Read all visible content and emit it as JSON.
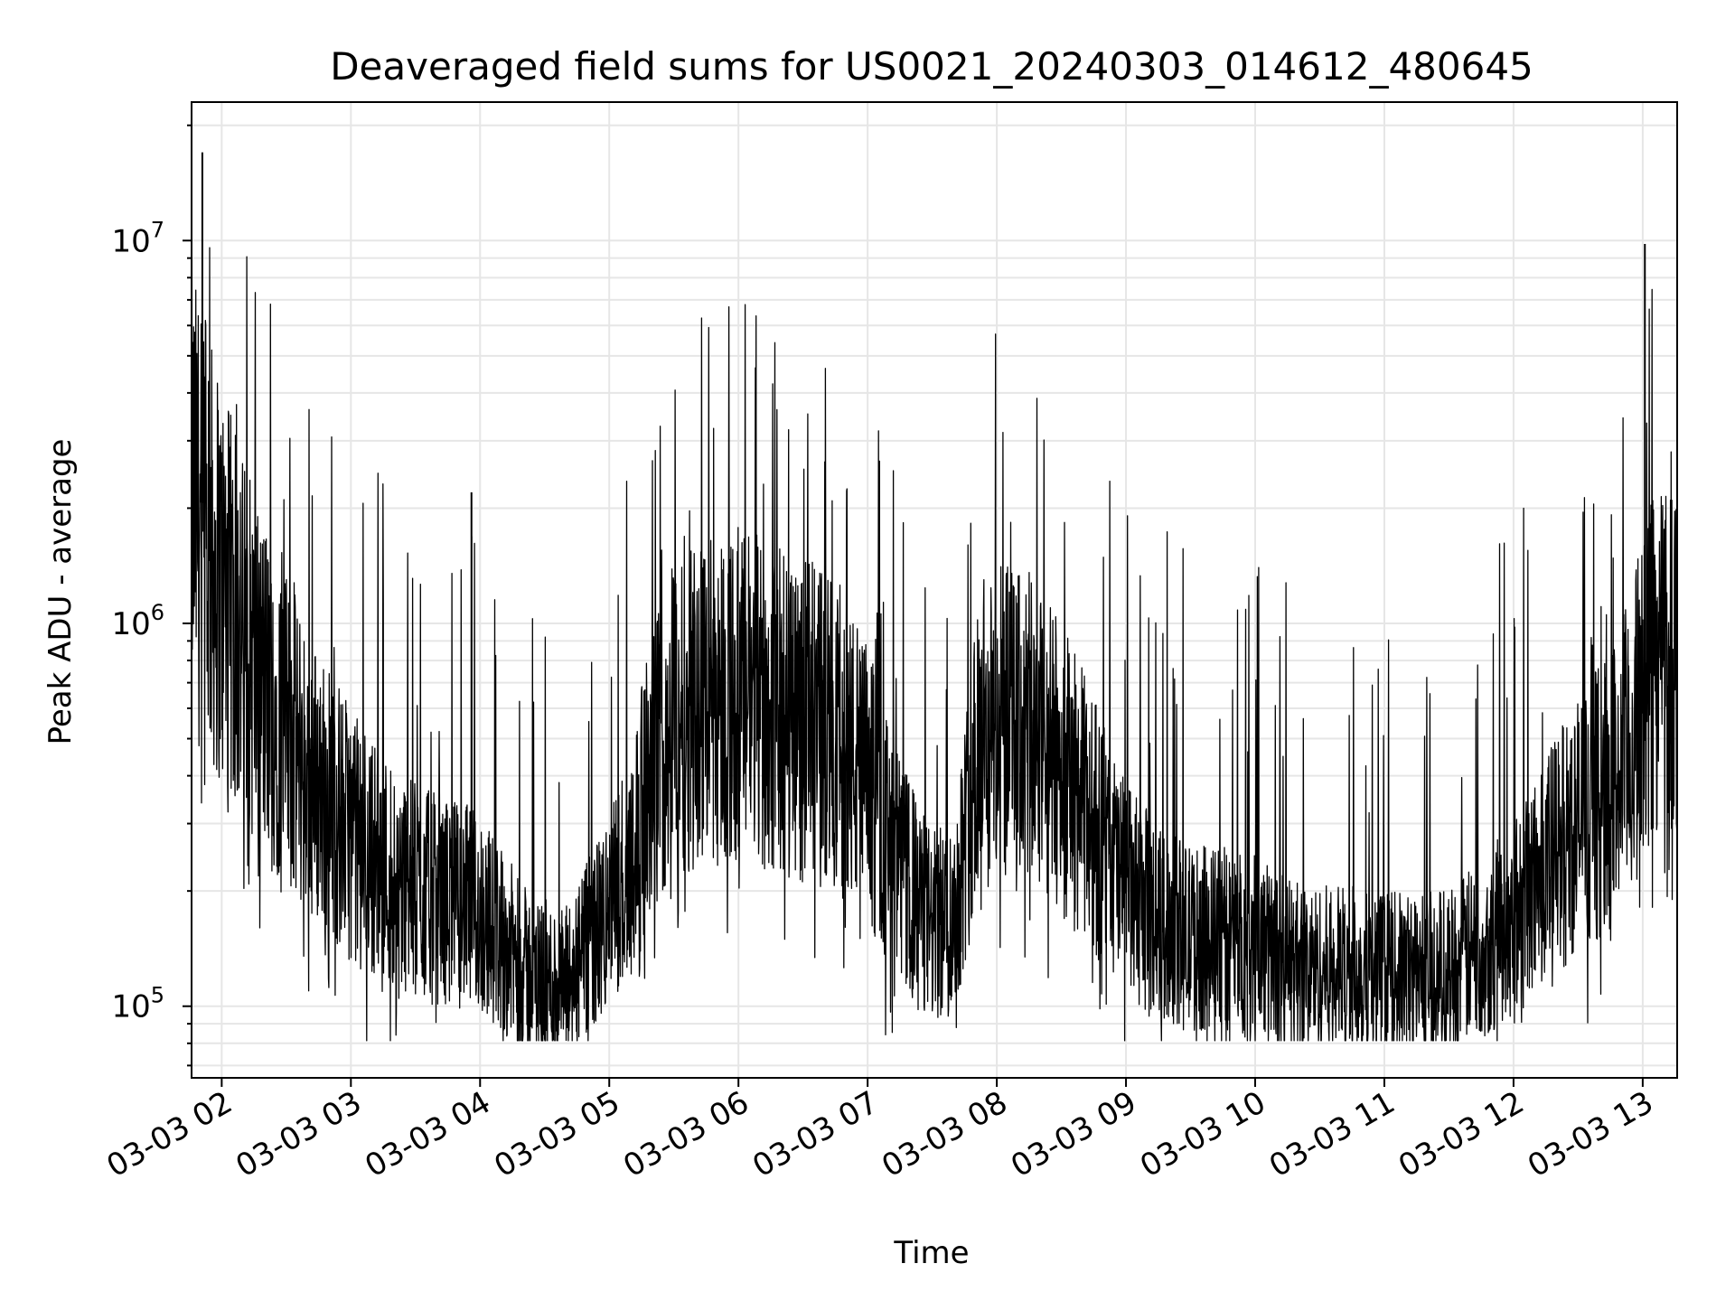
{
  "chart_data": {
    "type": "line",
    "title": "Deaveraged field sums for US0021_20240303_014612_480645",
    "xlabel": "Time",
    "ylabel": "Peak ADU - average",
    "yscale": "log",
    "ylim": [
      65000,
      23000000
    ],
    "xlim": [
      "03-03 01:46",
      "03-03 13:16"
    ],
    "grid": true,
    "x_ticks": [
      {
        "label": "03-03 02",
        "value": "03-03 02:00"
      },
      {
        "label": "03-03 03",
        "value": "03-03 03:00"
      },
      {
        "label": "03-03 04",
        "value": "03-03 04:00"
      },
      {
        "label": "03-03 05",
        "value": "03-03 05:00"
      },
      {
        "label": "03-03 06",
        "value": "03-03 06:00"
      },
      {
        "label": "03-03 07",
        "value": "03-03 07:00"
      },
      {
        "label": "03-03 08",
        "value": "03-03 08:00"
      },
      {
        "label": "03-03 09",
        "value": "03-03 09:00"
      },
      {
        "label": "03-03 10",
        "value": "03-03 10:00"
      },
      {
        "label": "03-03 11",
        "value": "03-03 11:00"
      },
      {
        "label": "03-03 12",
        "value": "03-03 12:00"
      },
      {
        "label": "03-03 13",
        "value": "03-03 13:00"
      }
    ],
    "y_ticks": [
      {
        "base": "10",
        "exp": "5",
        "value": 100000
      },
      {
        "base": "10",
        "exp": "6",
        "value": 1000000
      },
      {
        "base": "10",
        "exp": "7",
        "value": 10000000
      }
    ],
    "series": [
      {
        "color": "#000000",
        "x": [
          "03-03 01:46",
          "03-03 01:50",
          "03-03 01:55",
          "03-03 02:00",
          "03-03 02:05",
          "03-03 02:10",
          "03-03 02:15",
          "03-03 02:20",
          "03-03 02:25",
          "03-03 02:30",
          "03-03 02:35",
          "03-03 02:40",
          "03-03 02:45",
          "03-03 02:50",
          "03-03 02:55",
          "03-03 03:00",
          "03-03 03:10",
          "03-03 03:20",
          "03-03 03:30",
          "03-03 03:40",
          "03-03 03:50",
          "03-03 04:00",
          "03-03 04:10",
          "03-03 04:20",
          "03-03 04:30",
          "03-03 04:40",
          "03-03 04:50",
          "03-03 05:00",
          "03-03 05:10",
          "03-03 05:20",
          "03-03 05:30",
          "03-03 05:45",
          "03-03 06:00",
          "03-03 06:15",
          "03-03 06:30",
          "03-03 06:45",
          "03-03 07:00",
          "03-03 07:10",
          "03-03 07:20",
          "03-03 07:30",
          "03-03 07:40",
          "03-03 07:50",
          "03-03 08:00",
          "03-03 08:15",
          "03-03 08:30",
          "03-03 08:45",
          "03-03 09:00",
          "03-03 09:15",
          "03-03 09:30",
          "03-03 09:45",
          "03-03 10:00",
          "03-03 10:15",
          "03-03 10:30",
          "03-03 10:45",
          "03-03 11:00",
          "03-03 11:15",
          "03-03 11:30",
          "03-03 11:45",
          "03-03 12:00",
          "03-03 12:15",
          "03-03 12:30",
          "03-03 12:45",
          "03-03 12:55",
          "03-03 13:00",
          "03-03 13:05",
          "03-03 13:10",
          "03-03 13:16"
        ],
        "values": [
          2200000,
          1800000,
          1500000,
          1250000,
          1050000,
          900000,
          780000,
          680000,
          600000,
          520000,
          460000,
          410000,
          370000,
          340000,
          310000,
          280000,
          250000,
          220000,
          200000,
          190000,
          185000,
          175000,
          150000,
          125000,
          115000,
          110000,
          140000,
          175000,
          240000,
          400000,
          600000,
          650000,
          640000,
          600000,
          560000,
          520000,
          380000,
          260000,
          200000,
          160000,
          170000,
          420000,
          550000,
          520000,
          420000,
          300000,
          200000,
          165000,
          150000,
          150000,
          145000,
          130000,
          125000,
          125000,
          120000,
          120000,
          125000,
          140000,
          170000,
          230000,
          300000,
          370000,
          480000,
          650000,
          800000,
          900000,
          850000
        ],
        "spikes": [
          {
            "x": "03-03 01:51",
            "value": 17000000
          },
          {
            "x": "03-03 01:54",
            "value": 4300000
          },
          {
            "x": "03-03 03:56",
            "value": 2200000
          },
          {
            "x": "03-03 13:01",
            "value": 9800000
          }
        ]
      }
    ]
  }
}
